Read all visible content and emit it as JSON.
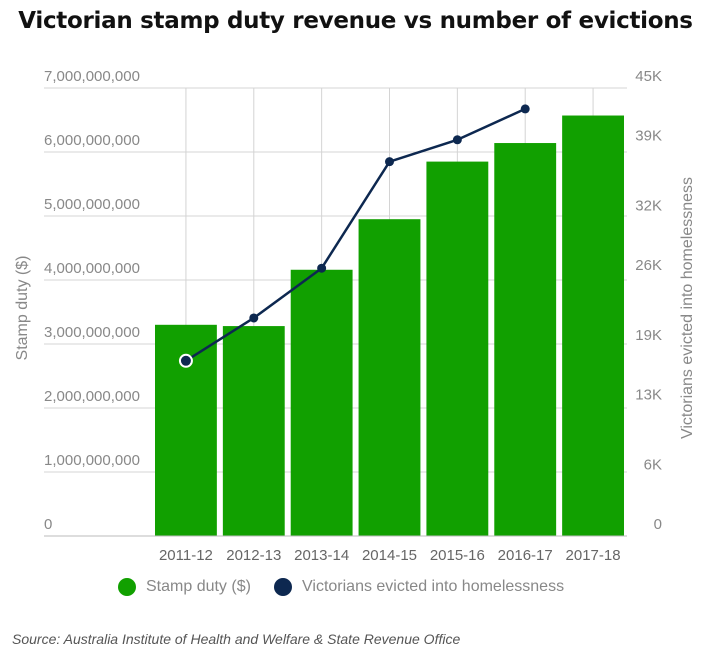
{
  "title": "Victorian stamp duty revenue vs number of evictions",
  "source": "Source: Australia Institute of Health and Welfare & State Revenue Office",
  "colors": {
    "bar": "#11a000",
    "line": "#0d2850",
    "grid": "#d4d4d4",
    "tick": "#888888"
  },
  "legend": {
    "stamp_duty": "Stamp duty ($)",
    "evictions": "Victorians evicted into homelessness"
  },
  "chart_data": {
    "type": "bar+line",
    "title": "Victorian stamp duty revenue vs number of evictions",
    "categories": [
      "2011-12",
      "2012-13",
      "2013-14",
      "2014-15",
      "2015-16",
      "2016-17",
      "2017-18"
    ],
    "y_left": {
      "label": "Stamp duty ($)",
      "lim": [
        0,
        7000000000
      ],
      "ticks": [
        0,
        1000000000,
        2000000000,
        3000000000,
        4000000000,
        5000000000,
        6000000000,
        7000000000
      ],
      "tick_labels": [
        "0",
        "1,000,000,000",
        "2,000,000,000",
        "3,000,000,000",
        "4,000,000,000",
        "5,000,000,000",
        "6,000,000,000",
        "7,000,000,000"
      ]
    },
    "y_right": {
      "label": "Victorians evicted into homelessness",
      "lim": [
        0,
        45000
      ],
      "ticks": [
        0,
        6000,
        13000,
        19000,
        26000,
        32000,
        39000,
        45000
      ],
      "tick_labels": [
        "0",
        "6K",
        "13K",
        "19K",
        "26K",
        "32K",
        "39K",
        "45K"
      ]
    },
    "series": [
      {
        "name": "Stamp duty ($)",
        "type": "bar",
        "axis": "left",
        "values": [
          3300000000,
          3280000000,
          4160000000,
          4950000000,
          5850000000,
          6140000000,
          6570000000
        ]
      },
      {
        "name": "Victorians evicted into homelessness",
        "type": "line",
        "axis": "right",
        "values": [
          17600,
          21900,
          26900,
          37600,
          39800,
          42900,
          null
        ]
      }
    ],
    "grid": true,
    "legend_position": "bottom"
  }
}
